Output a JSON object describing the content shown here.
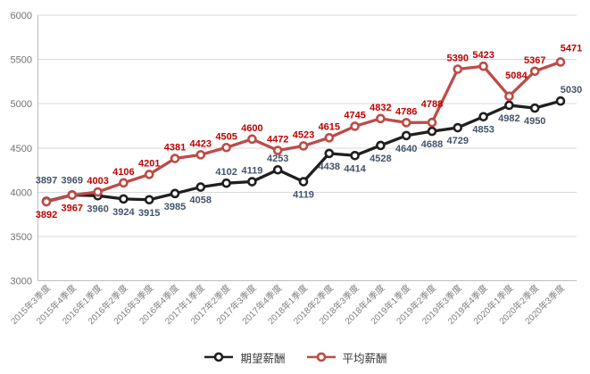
{
  "chart_data": {
    "type": "line",
    "title": "",
    "categories": [
      "2015年3季度",
      "2015年4季度",
      "2016年1季度",
      "2016年2季度",
      "2016年3季度",
      "2016年4季度",
      "2017年1季度",
      "2017年2季度",
      "2017年3季度",
      "2017年4季度",
      "2018年1季度",
      "2018年2季度",
      "2018年3季度",
      "2018年4季度",
      "2019年1季度",
      "2019年2季度",
      "2019年3季度",
      "2019年4季度",
      "2020年1季度",
      "2020年2季度",
      "2020年3季度"
    ],
    "series": [
      {
        "name": "期望薪酬",
        "color": "#1f1f1f",
        "label_color": "#44546a",
        "values": [
          3897,
          3969,
          3960,
          3924,
          3915,
          3985,
          4058,
          4102,
          4119,
          4253,
          4119,
          4438,
          4414,
          4528,
          4640,
          4688,
          4729,
          4853,
          4982,
          4950,
          5030
        ],
        "label_side": [
          "above",
          "above",
          "below",
          "below",
          "below",
          "below",
          "below",
          "above",
          "above",
          "above",
          "below",
          "below",
          "below",
          "below",
          "below",
          "below",
          "below",
          "below",
          "below",
          "below",
          "above"
        ]
      },
      {
        "name": "平均薪酬",
        "color": "#bd4b47",
        "label_color": "#c00000",
        "values": [
          3892,
          3967,
          4003,
          4106,
          4201,
          4381,
          4423,
          4505,
          4600,
          4472,
          4523,
          4615,
          4745,
          4832,
          4786,
          4788,
          5390,
          5423,
          5084,
          5367,
          5471
        ],
        "label_side": [
          "below",
          "below",
          "above",
          "above",
          "above",
          "above",
          "above",
          "above",
          "above",
          "above",
          "above",
          "above",
          "above",
          "above",
          "above",
          "above",
          "above",
          "above",
          "above",
          "above",
          "above"
        ]
      }
    ],
    "ylim": [
      3000,
      6000
    ],
    "yticks": [
      3000,
      3500,
      4000,
      4500,
      5000,
      5500,
      6000
    ],
    "grid": true,
    "legend_position": "bottom",
    "style": {
      "gridline_color": "#d9d9d9",
      "axis_color": "#bdbdbd",
      "marker_fill": "#ffffff",
      "background": "#ffffff"
    }
  }
}
